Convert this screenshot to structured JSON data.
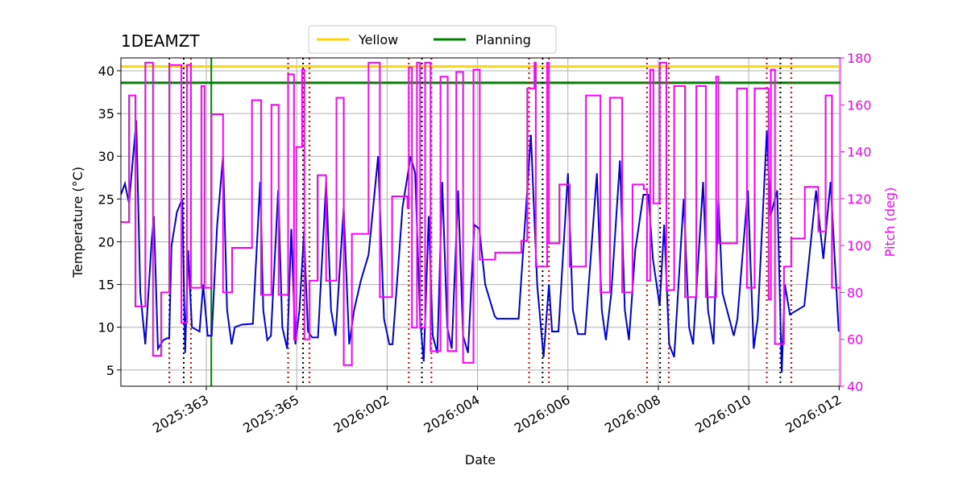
{
  "chart_data": {
    "type": "line",
    "title": "1DEAMZT",
    "xlabel": "Date",
    "ylabel": "Temperature (°C)",
    "y2label": "Pitch (deg)",
    "xlim": [
      361.11,
      377.03
    ],
    "ylim": [
      3.1,
      41.5
    ],
    "y2lim": [
      40,
      180
    ],
    "xticks": [
      {
        "value": 363,
        "label": "2025:363"
      },
      {
        "value": 365,
        "label": "2025:365"
      },
      {
        "value": 367,
        "label": "2026:002"
      },
      {
        "value": 369,
        "label": "2026:004"
      },
      {
        "value": 371,
        "label": "2026:006"
      },
      {
        "value": 373,
        "label": "2026:008"
      },
      {
        "value": 375,
        "label": "2026:010"
      },
      {
        "value": 377,
        "label": "2026:012"
      }
    ],
    "yticks": [
      5,
      10,
      15,
      20,
      25,
      30,
      35,
      40
    ],
    "y2ticks": [
      40,
      60,
      80,
      100,
      120,
      140,
      160,
      180
    ],
    "grid": true,
    "legend": "upper center",
    "y2color": "#ff00ff",
    "series": [
      {
        "color": "#0000dd",
        "step": false,
        "x": [
          361.11,
          361.2,
          361.29,
          361.45,
          361.54,
          361.65,
          361.79,
          361.84,
          361.93,
          362.05,
          362.18,
          362.23,
          362.35,
          362.47,
          362.53,
          362.6,
          362.68,
          362.85,
          362.93,
          363.03,
          363.12,
          363.24,
          363.37,
          363.46,
          363.56,
          363.63,
          363.78,
          364.03,
          364.19,
          364.26,
          364.35,
          364.43,
          364.59,
          364.68,
          364.79,
          364.88,
          364.97,
          365.06,
          365.16,
          365.25,
          365.34,
          365.47,
          365.65,
          365.76,
          365.86,
          366.04,
          366.16,
          366.27,
          366.42,
          366.59,
          366.8,
          366.93,
          367.05,
          367.12,
          367.34,
          367.52,
          367.62,
          367.73,
          367.81,
          367.92,
          368.01,
          368.11,
          368.22,
          368.33,
          368.43,
          368.57,
          368.68,
          368.79,
          368.93,
          369.04,
          369.17,
          369.38,
          369.43,
          369.91,
          370.18,
          370.32,
          370.46,
          370.58,
          370.65,
          370.79,
          371.0,
          371.11,
          371.22,
          371.38,
          371.64,
          371.75,
          371.84,
          371.96,
          372.15,
          372.26,
          372.35,
          372.49,
          372.67,
          372.78,
          372.88,
          373.03,
          373.13,
          373.24,
          373.35,
          373.56,
          373.68,
          373.77,
          373.99,
          374.1,
          374.22,
          374.33,
          374.42,
          374.67,
          374.75,
          374.98,
          375.11,
          375.2,
          375.4,
          375.48,
          375.63,
          375.73,
          375.8,
          375.91,
          376.23,
          376.49,
          376.65,
          376.81,
          376.99
        ],
        "values": [
          25.5,
          26.8,
          24.5,
          34.2,
          14,
          8,
          20,
          23,
          7.5,
          8.5,
          8.8,
          19.5,
          23.5,
          25,
          7,
          19,
          10,
          9.5,
          15,
          9,
          9,
          22,
          30,
          12,
          8,
          10,
          10.3,
          10.4,
          27,
          12,
          8.5,
          9,
          26,
          10,
          7.5,
          21.5,
          8,
          12,
          21,
          9.5,
          8.8,
          8.8,
          27,
          12,
          9,
          24,
          8,
          12,
          15.5,
          18.5,
          30,
          11,
          8,
          8,
          24,
          30,
          28,
          11,
          6,
          23,
          9,
          7,
          27,
          10,
          7.5,
          26,
          9,
          7,
          22,
          21.5,
          15,
          11.3,
          11,
          11,
          32.5,
          15,
          6.5,
          15,
          9.5,
          9.5,
          28,
          12,
          9.2,
          9.2,
          28,
          12,
          8.5,
          14,
          29.5,
          12,
          8.5,
          19,
          25.5,
          25.5,
          18,
          12.5,
          22,
          8,
          6.5,
          25,
          10,
          8,
          27,
          12,
          8,
          25,
          14,
          9,
          11,
          26,
          7.5,
          11,
          33,
          23,
          26,
          4.7,
          15,
          11.5,
          12.5,
          26,
          18,
          27,
          9.5
        ]
      },
      {
        "color": "#ff00ff",
        "axis": "y2",
        "step": true,
        "x": [
          361.11,
          361.29,
          361.43,
          361.65,
          361.82,
          362.0,
          362.18,
          362.45,
          362.57,
          362.66,
          362.89,
          362.96,
          363.11,
          363.37,
          363.57,
          364.01,
          364.21,
          364.44,
          364.6,
          364.81,
          364.94,
          364.99,
          365.12,
          365.17,
          365.28,
          365.46,
          365.65,
          365.88,
          366.04,
          366.22,
          366.59,
          366.84,
          367.11,
          367.45,
          367.48,
          367.55,
          367.66,
          367.73,
          367.84,
          367.96,
          368.18,
          368.34,
          368.53,
          368.68,
          368.91,
          369.05,
          369.39,
          369.97,
          370.1,
          370.26,
          370.29,
          370.54,
          370.58,
          370.81,
          371.04,
          371.4,
          371.72,
          371.93,
          372.2,
          372.43,
          372.68,
          372.75,
          372.82,
          372.89,
          373.03,
          373.18,
          373.35,
          373.59,
          373.84,
          374.05,
          374.28,
          374.33,
          374.74,
          374.96,
          375.13,
          375.4,
          375.44,
          375.49,
          375.58,
          375.78,
          375.94,
          376.24,
          376.54,
          376.7,
          376.84,
          377.0
        ],
        "values": [
          110,
          164,
          74,
          178,
          53,
          80,
          177,
          67,
          177,
          82,
          168,
          82,
          156,
          80,
          99,
          162,
          79,
          160,
          79,
          173,
          60,
          142,
          175,
          60,
          85,
          130,
          85,
          163,
          49,
          105,
          178,
          78,
          121,
          116,
          176,
          65,
          178,
          65,
          178,
          55,
          172,
          55,
          174,
          50,
          175,
          94,
          97,
          102,
          167,
          178,
          91,
          178,
          101,
          126,
          91,
          164,
          80,
          163,
          80,
          126,
          124,
          85,
          175,
          118,
          178,
          81,
          168,
          78,
          168,
          78,
          172,
          101,
          167,
          82,
          167,
          167,
          77,
          175,
          58,
          91,
          103,
          125,
          106,
          164,
          82,
          82
        ]
      }
    ],
    "hlines": [
      {
        "name": "Yellow",
        "value": 40.5,
        "color": "#ffd700"
      },
      {
        "name": "Planning",
        "value": 38.6,
        "color": "#008000"
      }
    ],
    "vlines": [
      {
        "value": 363.11,
        "color": "#008000",
        "dotted": false
      },
      {
        "value": 362.18,
        "color": "#dd0000",
        "dotted": true
      },
      {
        "value": 362.5,
        "color": "#000000",
        "dotted": true
      },
      {
        "value": 362.66,
        "color": "#dd0000",
        "dotted": true
      },
      {
        "value": 364.81,
        "color": "#dd0000",
        "dotted": true
      },
      {
        "value": 365.14,
        "color": "#000000",
        "dotted": true
      },
      {
        "value": 365.28,
        "color": "#dd0000",
        "dotted": true
      },
      {
        "value": 367.48,
        "color": "#dd0000",
        "dotted": true
      },
      {
        "value": 367.77,
        "color": "#000000",
        "dotted": true
      },
      {
        "value": 367.98,
        "color": "#dd0000",
        "dotted": true
      },
      {
        "value": 370.14,
        "color": "#dd0000",
        "dotted": true
      },
      {
        "value": 370.44,
        "color": "#000000",
        "dotted": true
      },
      {
        "value": 370.58,
        "color": "#dd0000",
        "dotted": true
      },
      {
        "value": 372.75,
        "color": "#dd0000",
        "dotted": true
      },
      {
        "value": 373.04,
        "color": "#000000",
        "dotted": true
      },
      {
        "value": 373.23,
        "color": "#dd0000",
        "dotted": true
      },
      {
        "value": 375.4,
        "color": "#dd0000",
        "dotted": true
      },
      {
        "value": 375.7,
        "color": "#000000",
        "dotted": true
      },
      {
        "value": 375.94,
        "color": "#dd0000",
        "dotted": true
      }
    ]
  }
}
